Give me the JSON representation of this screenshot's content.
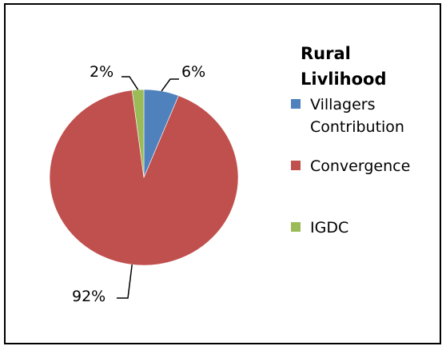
{
  "chart_data": {
    "type": "pie",
    "title_lines": [
      "Rural",
      "Livlihood"
    ],
    "slices": [
      {
        "name_lines": [
          "Villagers",
          "Contribution"
        ],
        "value": 6,
        "label": "6%",
        "color": "#4F81BD"
      },
      {
        "name_lines": [
          "Convergence"
        ],
        "value": 92,
        "label": "92%",
        "color": "#C0504D"
      },
      {
        "name_lines": [
          "IGDC"
        ],
        "value": 2,
        "label": "2%",
        "color": "#9BBB59"
      }
    ],
    "legend_position": "right"
  }
}
